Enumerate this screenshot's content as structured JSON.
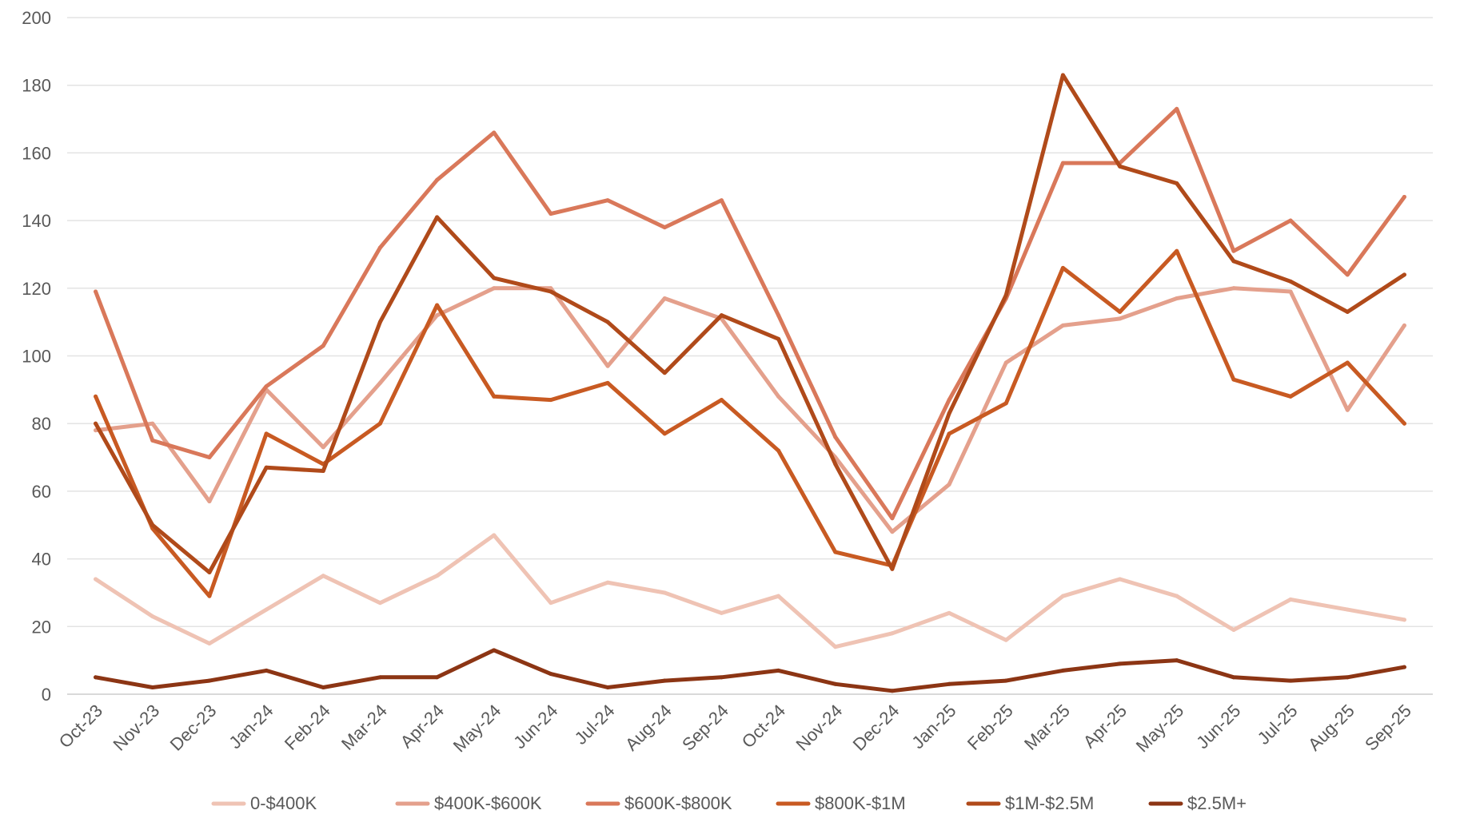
{
  "chart_data": {
    "type": "line",
    "title": "",
    "xlabel": "",
    "ylabel": "",
    "ylim": [
      0,
      200
    ],
    "yticks": [
      0,
      20,
      40,
      60,
      80,
      100,
      120,
      140,
      160,
      180,
      200
    ],
    "grid": true,
    "legend_position": "bottom",
    "categories": [
      "Oct-23",
      "Nov-23",
      "Dec-23",
      "Jan-24",
      "Feb-24",
      "Mar-24",
      "Apr-24",
      "May-24",
      "Jun-24",
      "Jul-24",
      "Aug-24",
      "Sep-24",
      "Oct-24",
      "Nov-24",
      "Dec-24",
      "Jan-25",
      "Feb-25",
      "Mar-25",
      "Apr-25",
      "May-25",
      "Jun-25",
      "Jul-25",
      "Aug-25",
      "Sep-25"
    ],
    "series": [
      {
        "name": "0-$400K",
        "color": "#efc3b4",
        "values": [
          34,
          23,
          15,
          25,
          35,
          27,
          35,
          47,
          27,
          33,
          30,
          24,
          29,
          14,
          18,
          24,
          16,
          29,
          34,
          29,
          19,
          28,
          25,
          22
        ]
      },
      {
        "name": "$400K-$600K",
        "color": "#e4a08c",
        "values": [
          78,
          80,
          57,
          90,
          73,
          92,
          112,
          120,
          120,
          97,
          117,
          111,
          88,
          70,
          48,
          62,
          98,
          109,
          111,
          117,
          120,
          119,
          84,
          109
        ]
      },
      {
        "name": "$600K-$800K",
        "color": "#d9785a",
        "values": [
          119,
          75,
          70,
          91,
          103,
          132,
          152,
          166,
          142,
          146,
          138,
          146,
          112,
          76,
          52,
          87,
          117,
          157,
          157,
          173,
          131,
          140,
          124,
          147
        ]
      },
      {
        "name": "$800K-$1M",
        "color": "#c85a22",
        "values": [
          88,
          49,
          29,
          77,
          68,
          80,
          115,
          88,
          87,
          92,
          77,
          87,
          72,
          42,
          38,
          77,
          86,
          126,
          113,
          131,
          93,
          88,
          98,
          80
        ]
      },
      {
        "name": "$1M-$2.5M",
        "color": "#b04a1a",
        "values": [
          80,
          50,
          36,
          67,
          66,
          110,
          141,
          123,
          119,
          110,
          95,
          112,
          105,
          68,
          37,
          83,
          118,
          183,
          156,
          151,
          128,
          122,
          113,
          124
        ]
      },
      {
        "name": "$2.5M+",
        "color": "#8c3514",
        "values": [
          5,
          2,
          4,
          7,
          2,
          5,
          5,
          13,
          6,
          2,
          4,
          5,
          7,
          3,
          1,
          3,
          4,
          7,
          9,
          10,
          5,
          4,
          5,
          8
        ]
      }
    ]
  }
}
